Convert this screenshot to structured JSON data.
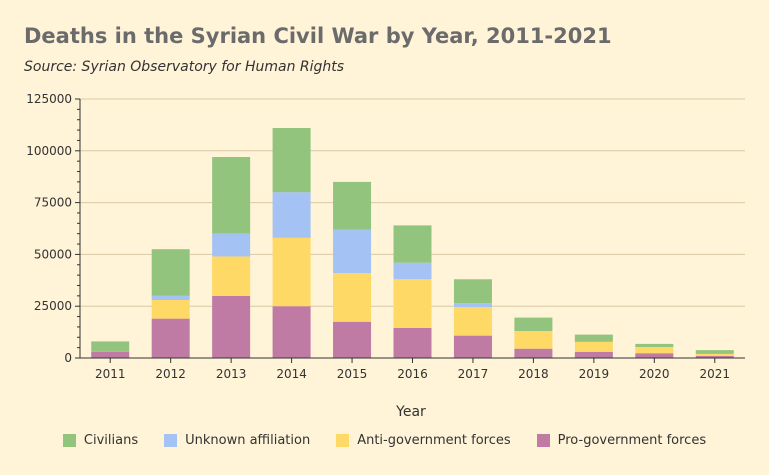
{
  "chart_data": {
    "type": "bar",
    "stacked": true,
    "title": "Deaths in the Syrian Civil War by Year, 2011-2021",
    "subtitle": "Source: Syrian Observatory for Human Rights",
    "xlabel": "Year",
    "ylabel": "",
    "ylim": [
      0,
      125000
    ],
    "yticks": [
      "0",
      "25000",
      "50000",
      "75000",
      "100000",
      "125000"
    ],
    "grid": true,
    "legend_position": "bottom",
    "categories": [
      "2011",
      "2012",
      "2013",
      "2014",
      "2015",
      "2016",
      "2017",
      "2018",
      "2019",
      "2020",
      "2021"
    ],
    "series": [
      {
        "name": "Pro-government forces",
        "color": "#c07ba4",
        "values": [
          3000,
          19000,
          30000,
          25000,
          17500,
          14500,
          10800,
          4500,
          3000,
          2300,
          1000
        ]
      },
      {
        "name": "Anti-government forces",
        "color": "#ffd966",
        "values": [
          0,
          9000,
          19000,
          33000,
          23500,
          23500,
          13700,
          8500,
          4800,
          3000,
          1000
        ]
      },
      {
        "name": "Unknown affiliation",
        "color": "#a4c2f4",
        "values": [
          0,
          2000,
          11000,
          22000,
          21000,
          8000,
          2000,
          0,
          0,
          0,
          0
        ]
      },
      {
        "name": "Civilians",
        "color": "#93c47d",
        "values": [
          5000,
          22500,
          37000,
          31000,
          23000,
          18000,
          11500,
          6500,
          3500,
          1500,
          1800
        ]
      }
    ],
    "legend_order": [
      "Civilians",
      "Unknown affiliation",
      "Anti-government forces",
      "Pro-government forces"
    ]
  }
}
